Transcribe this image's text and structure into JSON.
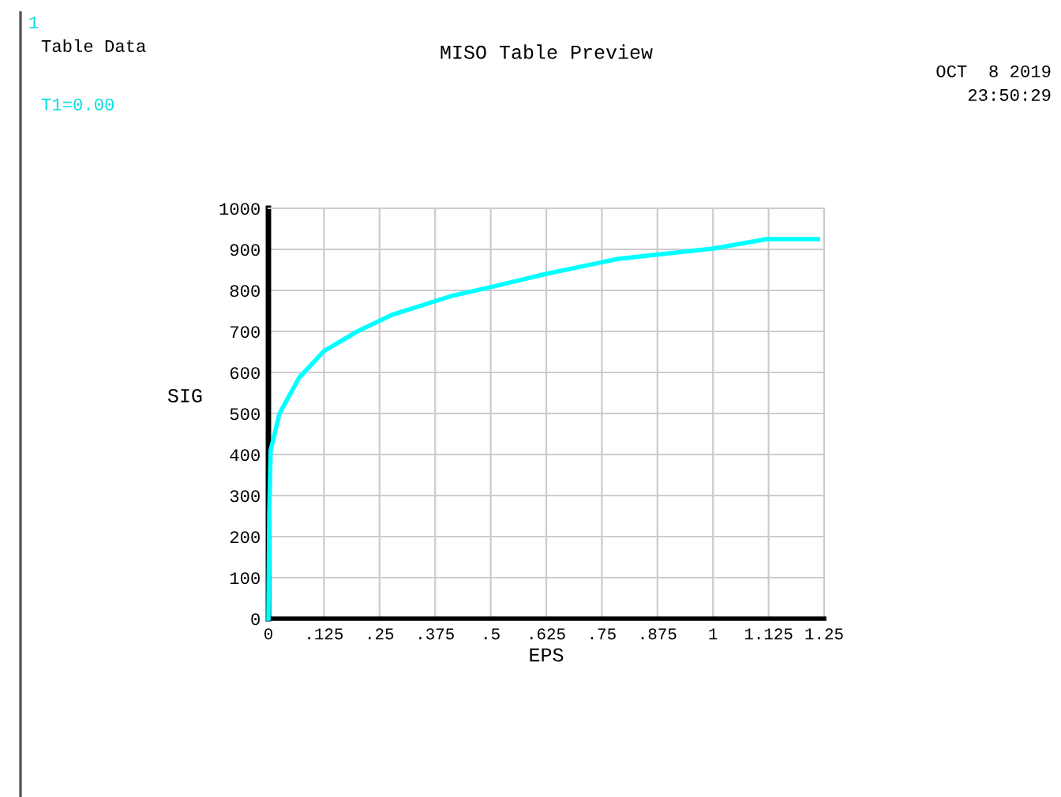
{
  "chart_data": {
    "type": "line",
    "title": "MISO Table Preview",
    "xlabel": "EPS",
    "ylabel": "SIG",
    "annotations": [
      "1",
      "Table Data",
      "T1=0.00",
      "OCT  8 2019",
      "23:50:29"
    ],
    "series": [
      {
        "color": "#00ffff",
        "x": [
          0,
          0.002,
          0.005,
          0.025,
          0.069,
          0.125,
          0.2,
          0.277,
          0.41,
          0.5,
          0.623,
          0.787,
          1.0,
          1.121,
          1.236
        ],
        "values": [
          0,
          260,
          410,
          500,
          587,
          652,
          700,
          740,
          786,
          808,
          840,
          877,
          902,
          925,
          925
        ]
      }
    ],
    "xlim": [
      0,
      1.25
    ],
    "ylim": [
      0,
      1000
    ],
    "xticks": [
      0,
      {
        "value": 0.125,
        "label": ".125"
      },
      {
        "value": 0.25,
        "label": ".25"
      },
      {
        "value": 0.375,
        "label": ".375"
      },
      {
        "value": 0.5,
        "label": ".5"
      },
      {
        "value": 0.625,
        "label": ".625"
      },
      {
        "value": 0.75,
        "label": ".75"
      },
      {
        "value": 0.875,
        "label": ".875"
      },
      1,
      1.125,
      1.25
    ],
    "yticks": [
      0,
      100,
      200,
      300,
      400,
      500,
      600,
      700,
      800,
      900,
      1000
    ],
    "grid": true,
    "legend": false,
    "line_style": "solid",
    "marker": "none"
  }
}
